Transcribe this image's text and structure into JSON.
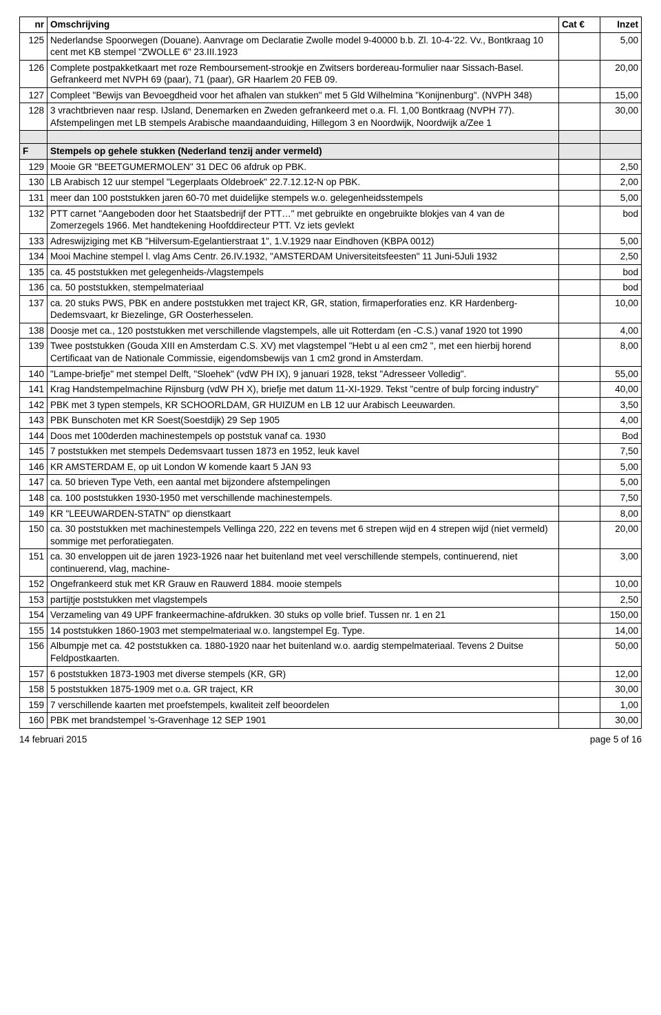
{
  "headers": {
    "nr": "nr",
    "desc": "Omschrijving",
    "cat": "Cat €",
    "inzet": "Inzet"
  },
  "footer": {
    "left": "14 februari 2015",
    "right": "page 5 of 16"
  },
  "rows": [
    {
      "nr": "125",
      "desc": "Nederlandse Spoorwegen (Douane). Aanvrage om Declaratie Zwolle model 9-40000 b.b. Zl. 10-4-'22. Vv., Bontkraag 10 cent met KB stempel \"ZWOLLE 6\" 23.III.1923",
      "cat": "",
      "inzet": "5,00"
    },
    {
      "nr": "126",
      "desc": "Complete postpakketkaart met roze Remboursement-strookje en Zwitsers bordereau-formulier naar Sissach-Basel. Gefrankeerd met NVPH 69 (paar), 71 (paar), GR Haarlem 20 FEB 09.",
      "cat": "",
      "inzet": "20,00"
    },
    {
      "nr": "127",
      "desc": "Compleet \"Bewijs van Bevoegdheid voor het afhalen van stukken\" met 5 Gld Wilhelmina \"Konijnenburg\". (NVPH 348)",
      "cat": "",
      "inzet": "15,00"
    },
    {
      "nr": "128",
      "desc": "3 vrachtbrieven naar resp. IJsland, Denemarken en Zweden gefrankeerd met o.a. Fl. 1,00 Bontkraag (NVPH 77). Afstempelingen met LB stempels Arabische maandaanduiding, Hillegom 3 en Noordwijk, Noordwijk a/Zee 1",
      "cat": "",
      "inzet": "30,00"
    },
    {
      "spacer": true
    },
    {
      "section": true,
      "nr": "F",
      "desc": "Stempels op gehele stukken (Nederland tenzij ander vermeld)",
      "cat": "",
      "inzet": ""
    },
    {
      "nr": "129",
      "desc": "Mooie GR \"BEETGUMERMOLEN\" 31 DEC 06 afdruk op PBK.",
      "cat": "",
      "inzet": "2,50"
    },
    {
      "nr": "130",
      "desc": "LB Arabisch 12 uur stempel \"Legerplaats Oldebroek\" 22.7.12.12-N op PBK.",
      "cat": "",
      "inzet": "2,00"
    },
    {
      "nr": "131",
      "desc": "meer dan 100 poststukken jaren 60-70 met duidelijke stempels w.o. gelegenheidsstempels",
      "cat": "",
      "inzet": "5,00"
    },
    {
      "nr": "132",
      "desc": "PTT carnet \"Aangeboden door het Staatsbedrijf der PTT…\" met gebruikte en ongebruikte blokjes van 4 van de Zomerzegels 1966. Met handtekening Hoofddirecteur PTT. Vz iets gevlekt",
      "cat": "",
      "inzet": "bod"
    },
    {
      "nr": "133",
      "desc": "Adreswijziging met KB \"Hilversum-Egelantierstraat 1\", 1.V.1929 naar Eindhoven (KBPA 0012)",
      "cat": "",
      "inzet": "5,00"
    },
    {
      "nr": "134",
      "desc": "Mooi Machine stempel l. vlag Ams Centr. 26.IV.1932, \"AMSTERDAM Universiteitsfeesten\" 11 Juni-5Juli 1932",
      "cat": "",
      "inzet": "2,50"
    },
    {
      "nr": "135",
      "desc": "ca. 45 poststukken met gelegenheids-/vlagstempels",
      "cat": "",
      "inzet": "bod"
    },
    {
      "nr": "136",
      "desc": "ca. 50 poststukken, stempelmateriaal",
      "cat": "",
      "inzet": "bod"
    },
    {
      "nr": "137",
      "desc": "ca. 20 stuks PWS, PBK en andere poststukken met traject KR, GR, station, firmaperforaties enz. KR Hardenberg-Dedemsvaart, kr Biezelinge, GR Oosterhesselen.",
      "cat": "",
      "inzet": "10,00"
    },
    {
      "nr": "138",
      "desc": "Doosje met ca., 120 poststukken met verschillende vlagstempels, alle uit Rotterdam (en -C.S.) vanaf 1920 tot 1990",
      "cat": "",
      "inzet": "4,00"
    },
    {
      "nr": "139",
      "desc": "Twee poststukken (Gouda XIII en Amsterdam C.S. XV) met vlagstempel \"Hebt u al een cm2 \", met een hierbij horend Certificaat van de Nationale Commissie, eigendomsbewijs van 1 cm2 grond in Amsterdam.",
      "cat": "",
      "inzet": "8,00"
    },
    {
      "nr": "140",
      "desc": "\"Lampe-briefje\" met stempel Delft, \"Sloehek\" (vdW PH IX), 9 januari 1928, tekst \"Adresseer Volledig\".",
      "cat": "",
      "inzet": "55,00"
    },
    {
      "nr": "141",
      "desc": "Krag Handstempelmachine Rijnsburg (vdW PH X), briefje met datum 11-XI-1929. Tekst \"centre of bulp forcing industry\"",
      "cat": "",
      "inzet": "40,00"
    },
    {
      "nr": "142",
      "desc": "PBK met 3 typen stempels, KR SCHOORLDAM, GR HUIZUM en LB 12 uur Arabisch Leeuwarden.",
      "cat": "",
      "inzet": "3,50"
    },
    {
      "nr": "143",
      "desc": "PBK Bunschoten met KR Soest(Soestdijk) 29 Sep 1905",
      "cat": "",
      "inzet": "4,00"
    },
    {
      "nr": "144",
      "desc": "Doos met 100derden machinestempels op poststuk vanaf ca. 1930",
      "cat": "",
      "inzet": "Bod"
    },
    {
      "nr": "145",
      "desc": "7 poststukken met stempels Dedemsvaart tussen 1873 en 1952, leuk kavel",
      "cat": "",
      "inzet": "7,50"
    },
    {
      "nr": "146",
      "desc": "KR AMSTERDAM E, op uit London W komende kaart 5 JAN 93",
      "cat": "",
      "inzet": "5,00"
    },
    {
      "nr": "147",
      "desc": "ca. 50 brieven Type Veth, een aantal met bijzondere afstempelingen",
      "cat": "",
      "inzet": "5,00"
    },
    {
      "nr": "148",
      "desc": "ca. 100 poststukken 1930-1950 met verschillende machinestempels.",
      "cat": "",
      "inzet": "7,50"
    },
    {
      "nr": "149",
      "desc": "KR \"LEEUWARDEN-STATN\" op dienstkaart",
      "cat": "",
      "inzet": "8,00"
    },
    {
      "nr": "150",
      "desc": "ca. 30 poststukken met machinestempels Vellinga 220, 222 en tevens met 6 strepen wijd en 4 strepen wijd (niet vermeld) sommige met perforatiegaten.",
      "cat": "",
      "inzet": "20,00"
    },
    {
      "nr": "151",
      "desc": "ca. 30 enveloppen uit de jaren 1923-1926 naar het buitenland met veel verschillende stempels, continuerend, niet continuerend, vlag, machine-",
      "cat": "",
      "inzet": "3,00"
    },
    {
      "nr": "152",
      "desc": "Ongefrankeerd stuk met KR Grauw en Rauwerd 1884. mooie stempels",
      "cat": "",
      "inzet": "10,00"
    },
    {
      "nr": "153",
      "desc": "partijtje poststukken met vlagstempels",
      "cat": "",
      "inzet": "2,50"
    },
    {
      "nr": "154",
      "desc": "Verzameling van 49 UPF frankeermachine-afdrukken. 30 stuks op volle brief. Tussen nr. 1 en 21",
      "cat": "",
      "inzet": "150,00"
    },
    {
      "nr": "155",
      "desc": "14 poststukken 1860-1903 met stempelmateriaal w.o. langstempel Eg. Type.",
      "cat": "",
      "inzet": "14,00"
    },
    {
      "nr": "156",
      "desc": "Albumpje met ca. 42 poststukken ca. 1880-1920 naar het buitenland w.o. aardig stempelmateriaal. Tevens 2 Duitse Feldpostkaarten.",
      "cat": "",
      "inzet": "50,00"
    },
    {
      "nr": "157",
      "desc": "6 poststukken 1873-1903 met diverse stempels (KR, GR)",
      "cat": "",
      "inzet": "12,00"
    },
    {
      "nr": "158",
      "desc": "5 poststukken 1875-1909 met o.a. GR traject, KR",
      "cat": "",
      "inzet": "30,00"
    },
    {
      "nr": "159",
      "desc": "7 verschillende kaarten met proefstempels, kwaliteit zelf beoordelen",
      "cat": "",
      "inzet": "1,00"
    },
    {
      "nr": "160",
      "desc": "PBK met brandstempel 's-Gravenhage 12 SEP 1901",
      "cat": "",
      "inzet": "30,00"
    }
  ]
}
